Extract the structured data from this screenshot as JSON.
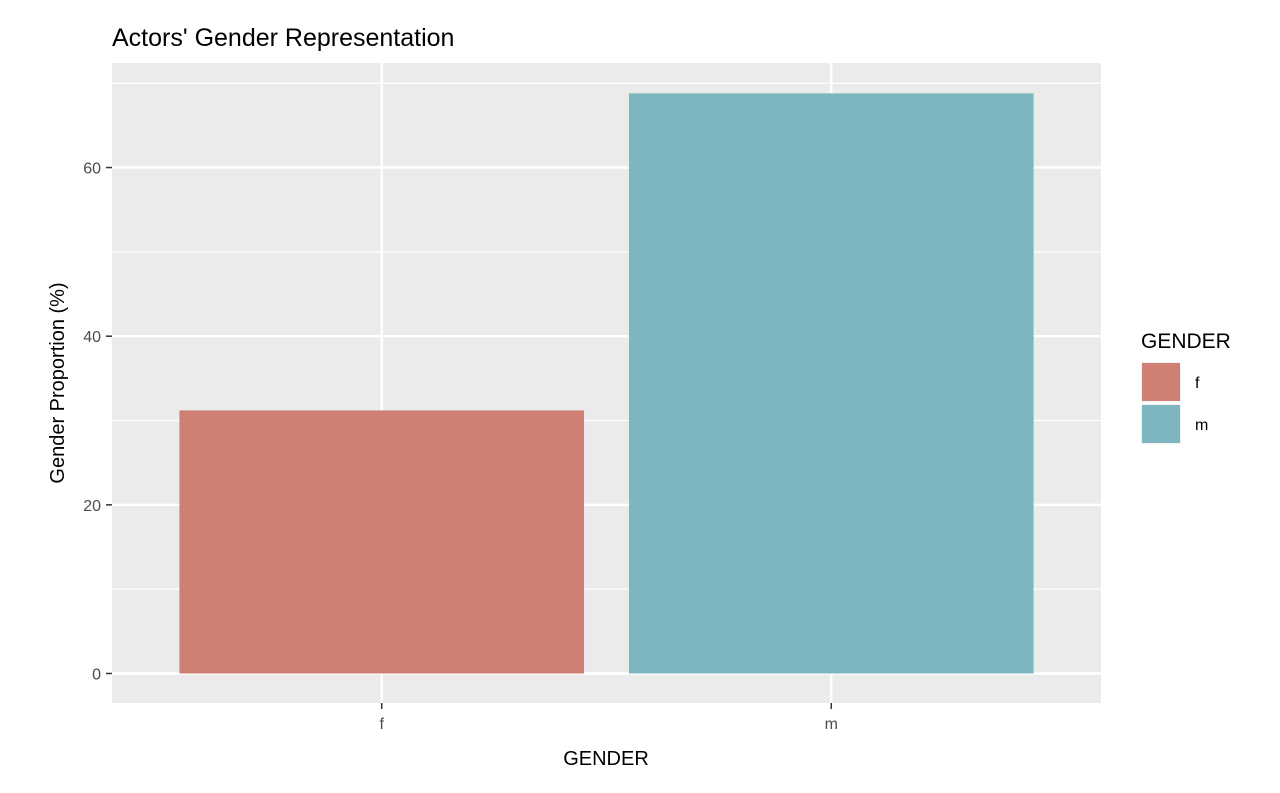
{
  "chart_data": {
    "type": "bar",
    "title": "Actors' Gender Representation",
    "xlabel": "GENDER",
    "ylabel": "Gender Proportion (%)",
    "categories": [
      "f",
      "m"
    ],
    "values": [
      31.2,
      68.8
    ],
    "colors": [
      "#CF7F74",
      "#7DB6BE"
    ],
    "ylim": [
      -3.5,
      72.4
    ],
    "yticks": [
      0,
      20,
      40,
      60
    ],
    "grid": true,
    "panel_background": "#EBEBEB",
    "grid_color": "#FFFFFF",
    "legend": {
      "title": "GENDER",
      "position": "right",
      "entries": [
        {
          "label": "f",
          "color": "#CF7F74"
        },
        {
          "label": "m",
          "color": "#7DB6BE"
        }
      ]
    }
  }
}
